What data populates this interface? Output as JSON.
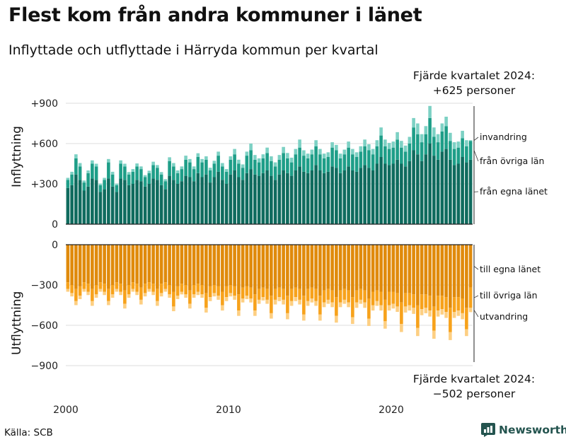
{
  "header": {
    "title": "Flest kom från andra kommuner i länet",
    "subtitle": "Inflyttade och utflyttade i Härryda kommun per kvartal"
  },
  "annotations": {
    "top_line1": "Fjärde kvartalet 2024:",
    "top_line2": "+625 personer",
    "bottom_line1": "Fjärde kvartalet 2024:",
    "bottom_line2": "−502 personer"
  },
  "footer": {
    "source": "Källa: SCB",
    "brand": "Newsworthy"
  },
  "colors": {
    "in_own": "#0f6b5e",
    "in_other": "#1e9e88",
    "in_immigration": "#7dd1c4",
    "out_own": "#e08a0b",
    "out_other": "#f7a21b",
    "out_emigration": "#fdcf82",
    "grid": "#dddddd",
    "axis": "#222222",
    "brand": "#24544f"
  },
  "chart_data": {
    "type": "bar",
    "stacked": true,
    "diverging": true,
    "x_start_year": 2000,
    "periods_per_year": 4,
    "quarter_count": 100,
    "x_ticks": [
      {
        "label": "2000",
        "value": 2000
      },
      {
        "label": "2010",
        "value": 2010
      },
      {
        "label": "2020",
        "value": 2020
      }
    ],
    "panels": [
      {
        "name": "inflow",
        "ylabel": "Inflyttning",
        "ylim": [
          0,
          900
        ],
        "yticks": [
          {
            "value": 900,
            "label": "+900"
          },
          {
            "value": 600,
            "label": "+600"
          },
          {
            "value": 300,
            "label": "+300"
          },
          {
            "value": 0,
            "label": "0"
          }
        ],
        "series": [
          {
            "name": "från egna länet",
            "values": [
              270,
              290,
              370,
              330,
              250,
              280,
              340,
              330,
              240,
              260,
              340,
              280,
              240,
              340,
              330,
              290,
              300,
              330,
              320,
              280,
              300,
              340,
              330,
              290,
              260,
              360,
              330,
              300,
              320,
              360,
              350,
              320,
              380,
              350,
              370,
              310,
              350,
              390,
              330,
              300,
              370,
              400,
              350,
              330,
              380,
              410,
              370,
              360,
              380,
              400,
              360,
              330,
              370,
              400,
              380,
              360,
              400,
              430,
              390,
              380,
              400,
              440,
              400,
              380,
              390,
              430,
              420,
              380,
              400,
              430,
              400,
              390,
              420,
              440,
              420,
              400,
              450,
              500,
              450,
              440,
              450,
              480,
              450,
              430,
              470,
              550,
              520,
              470,
              520,
              600,
              510,
              480,
              540,
              560,
              480,
              440,
              450,
              500,
              460,
              480
            ]
          },
          {
            "name": "från övriga län",
            "values": [
              60,
              80,
              120,
              100,
              60,
              100,
              110,
              100,
              50,
              70,
              120,
              90,
              50,
              110,
              100,
              80,
              90,
              100,
              90,
              70,
              80,
              100,
              90,
              80,
              60,
              110,
              100,
              80,
              90,
              120,
              110,
              90,
              120,
              110,
              110,
              90,
              100,
              120,
              100,
              90,
              110,
              120,
              100,
              90,
              130,
              140,
              110,
              100,
              110,
              130,
              110,
              100,
              110,
              130,
              110,
              100,
              120,
              140,
              120,
              110,
              120,
              140,
              120,
              110,
              110,
              140,
              130,
              110,
              120,
              140,
              120,
              110,
              120,
              140,
              130,
              120,
              130,
              160,
              130,
              120,
              120,
              150,
              120,
              110,
              130,
              170,
              150,
              140,
              150,
              190,
              140,
              130,
              150,
              170,
              140,
              120,
              120,
              140,
              120,
              140
            ]
          },
          {
            "name": "invandring",
            "values": [
              15,
              20,
              30,
              25,
              15,
              20,
              25,
              20,
              12,
              15,
              25,
              20,
              12,
              25,
              20,
              18,
              20,
              22,
              20,
              15,
              18,
              25,
              20,
              18,
              15,
              28,
              25,
              20,
              20,
              30,
              25,
              20,
              28,
              25,
              25,
              20,
              22,
              30,
              25,
              20,
              25,
              40,
              30,
              25,
              30,
              50,
              35,
              30,
              30,
              40,
              35,
              30,
              35,
              45,
              40,
              35,
              40,
              60,
              40,
              35,
              35,
              45,
              40,
              35,
              35,
              40,
              40,
              35,
              35,
              45,
              40,
              35,
              40,
              50,
              45,
              40,
              45,
              60,
              50,
              45,
              45,
              55,
              50,
              45,
              50,
              70,
              80,
              60,
              60,
              90,
              70,
              60,
              60,
              70,
              60,
              50,
              45,
              55,
              45,
              5
            ]
          }
        ]
      },
      {
        "name": "outflow",
        "ylabel": "Utflyttning",
        "ylim": [
          -900,
          0
        ],
        "yticks": [
          {
            "value": 0,
            "label": "0"
          },
          {
            "value": -300,
            "label": "−300"
          },
          {
            "value": -600,
            "label": "−600"
          },
          {
            "value": -900,
            "label": "−900"
          }
        ],
        "series": [
          {
            "name": "till egna länet",
            "values": [
              -280,
              -300,
              -330,
              -310,
              -280,
              -290,
              -330,
              -300,
              -280,
              -290,
              -330,
              -300,
              -280,
              -290,
              -340,
              -300,
              -280,
              -290,
              -320,
              -290,
              -280,
              -290,
              -330,
              -290,
              -280,
              -300,
              -350,
              -310,
              -290,
              -300,
              -340,
              -300,
              -290,
              -300,
              -360,
              -310,
              -300,
              -310,
              -350,
              -310,
              -300,
              -310,
              -370,
              -320,
              -310,
              -320,
              -370,
              -330,
              -320,
              -330,
              -380,
              -330,
              -320,
              -330,
              -380,
              -330,
              -320,
              -330,
              -380,
              -330,
              -320,
              -330,
              -380,
              -340,
              -330,
              -340,
              -390,
              -340,
              -330,
              -340,
              -390,
              -340,
              -330,
              -340,
              -400,
              -350,
              -340,
              -350,
              -410,
              -350,
              -350,
              -360,
              -430,
              -360,
              -360,
              -370,
              -450,
              -370,
              -370,
              -380,
              -460,
              -380,
              -380,
              -390,
              -470,
              -390,
              -390,
              -400,
              -470,
              -320
            ]
          },
          {
            "name": "till övriga län",
            "values": [
              -50,
              -60,
              -90,
              -70,
              -50,
              -60,
              -90,
              -70,
              -50,
              -60,
              -90,
              -70,
              -50,
              -60,
              -100,
              -70,
              -50,
              -60,
              -90,
              -70,
              -50,
              -60,
              -90,
              -70,
              -50,
              -70,
              -110,
              -70,
              -60,
              -70,
              -100,
              -70,
              -60,
              -70,
              -110,
              -80,
              -60,
              -70,
              -100,
              -80,
              -60,
              -70,
              -120,
              -80,
              -70,
              -80,
              -120,
              -80,
              -70,
              -80,
              -130,
              -80,
              -70,
              -80,
              -130,
              -90,
              -70,
              -80,
              -140,
              -90,
              -80,
              -90,
              -140,
              -90,
              -80,
              -90,
              -140,
              -90,
              -80,
              -90,
              -150,
              -90,
              -80,
              -90,
              -150,
              -100,
              -80,
              -100,
              -160,
              -100,
              -90,
              -100,
              -160,
              -100,
              -90,
              -100,
              -170,
              -110,
              -100,
              -110,
              -180,
              -110,
              -100,
              -110,
              -180,
              -110,
              -100,
              -110,
              -160,
              -150
            ]
          },
          {
            "name": "utvandring",
            "values": [
              -20,
              -25,
              -30,
              -25,
              -20,
              -25,
              -35,
              -25,
              -20,
              -25,
              -30,
              -25,
              -20,
              -25,
              -35,
              -25,
              -20,
              -25,
              -35,
              -25,
              -20,
              -25,
              -35,
              -25,
              -20,
              -25,
              -35,
              -25,
              -20,
              -25,
              -35,
              -25,
              -25,
              -25,
              -35,
              -30,
              -25,
              -30,
              -40,
              -30,
              -25,
              -30,
              -40,
              -30,
              -25,
              -30,
              -40,
              -30,
              -25,
              -30,
              -40,
              -35,
              -30,
              -35,
              -45,
              -35,
              -30,
              -35,
              -45,
              -35,
              -30,
              -35,
              -45,
              -35,
              -30,
              -35,
              -50,
              -35,
              -30,
              -35,
              -50,
              -40,
              -30,
              -40,
              -55,
              -40,
              -35,
              -40,
              -55,
              -40,
              -35,
              -40,
              -60,
              -45,
              -40,
              -45,
              -60,
              -45,
              -40,
              -45,
              -60,
              -45,
              -40,
              -45,
              -60,
              -45,
              -40,
              -45,
              -50,
              -32
            ]
          }
        ]
      }
    ]
  }
}
